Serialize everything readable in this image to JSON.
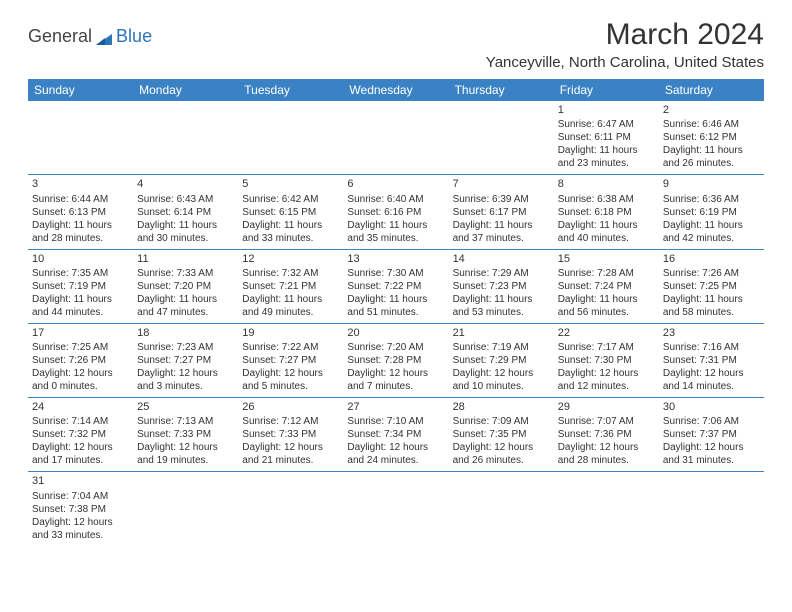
{
  "brand": {
    "general": "General",
    "blue": "Blue"
  },
  "title": "March 2024",
  "location": "Yanceyville, North Carolina, United States",
  "headers": [
    "Sunday",
    "Monday",
    "Tuesday",
    "Wednesday",
    "Thursday",
    "Friday",
    "Saturday"
  ],
  "colors": {
    "header_bg": "#3b82c4",
    "header_text": "#ffffff",
    "border": "#3b82c4",
    "brand_blue": "#2a74b8"
  },
  "weeks": [
    [
      null,
      null,
      null,
      null,
      null,
      {
        "n": "1",
        "sr": "Sunrise: 6:47 AM",
        "ss": "Sunset: 6:11 PM",
        "d1": "Daylight: 11 hours",
        "d2": "and 23 minutes."
      },
      {
        "n": "2",
        "sr": "Sunrise: 6:46 AM",
        "ss": "Sunset: 6:12 PM",
        "d1": "Daylight: 11 hours",
        "d2": "and 26 minutes."
      }
    ],
    [
      {
        "n": "3",
        "sr": "Sunrise: 6:44 AM",
        "ss": "Sunset: 6:13 PM",
        "d1": "Daylight: 11 hours",
        "d2": "and 28 minutes."
      },
      {
        "n": "4",
        "sr": "Sunrise: 6:43 AM",
        "ss": "Sunset: 6:14 PM",
        "d1": "Daylight: 11 hours",
        "d2": "and 30 minutes."
      },
      {
        "n": "5",
        "sr": "Sunrise: 6:42 AM",
        "ss": "Sunset: 6:15 PM",
        "d1": "Daylight: 11 hours",
        "d2": "and 33 minutes."
      },
      {
        "n": "6",
        "sr": "Sunrise: 6:40 AM",
        "ss": "Sunset: 6:16 PM",
        "d1": "Daylight: 11 hours",
        "d2": "and 35 minutes."
      },
      {
        "n": "7",
        "sr": "Sunrise: 6:39 AM",
        "ss": "Sunset: 6:17 PM",
        "d1": "Daylight: 11 hours",
        "d2": "and 37 minutes."
      },
      {
        "n": "8",
        "sr": "Sunrise: 6:38 AM",
        "ss": "Sunset: 6:18 PM",
        "d1": "Daylight: 11 hours",
        "d2": "and 40 minutes."
      },
      {
        "n": "9",
        "sr": "Sunrise: 6:36 AM",
        "ss": "Sunset: 6:19 PM",
        "d1": "Daylight: 11 hours",
        "d2": "and 42 minutes."
      }
    ],
    [
      {
        "n": "10",
        "sr": "Sunrise: 7:35 AM",
        "ss": "Sunset: 7:19 PM",
        "d1": "Daylight: 11 hours",
        "d2": "and 44 minutes."
      },
      {
        "n": "11",
        "sr": "Sunrise: 7:33 AM",
        "ss": "Sunset: 7:20 PM",
        "d1": "Daylight: 11 hours",
        "d2": "and 47 minutes."
      },
      {
        "n": "12",
        "sr": "Sunrise: 7:32 AM",
        "ss": "Sunset: 7:21 PM",
        "d1": "Daylight: 11 hours",
        "d2": "and 49 minutes."
      },
      {
        "n": "13",
        "sr": "Sunrise: 7:30 AM",
        "ss": "Sunset: 7:22 PM",
        "d1": "Daylight: 11 hours",
        "d2": "and 51 minutes."
      },
      {
        "n": "14",
        "sr": "Sunrise: 7:29 AM",
        "ss": "Sunset: 7:23 PM",
        "d1": "Daylight: 11 hours",
        "d2": "and 53 minutes."
      },
      {
        "n": "15",
        "sr": "Sunrise: 7:28 AM",
        "ss": "Sunset: 7:24 PM",
        "d1": "Daylight: 11 hours",
        "d2": "and 56 minutes."
      },
      {
        "n": "16",
        "sr": "Sunrise: 7:26 AM",
        "ss": "Sunset: 7:25 PM",
        "d1": "Daylight: 11 hours",
        "d2": "and 58 minutes."
      }
    ],
    [
      {
        "n": "17",
        "sr": "Sunrise: 7:25 AM",
        "ss": "Sunset: 7:26 PM",
        "d1": "Daylight: 12 hours",
        "d2": "and 0 minutes."
      },
      {
        "n": "18",
        "sr": "Sunrise: 7:23 AM",
        "ss": "Sunset: 7:27 PM",
        "d1": "Daylight: 12 hours",
        "d2": "and 3 minutes."
      },
      {
        "n": "19",
        "sr": "Sunrise: 7:22 AM",
        "ss": "Sunset: 7:27 PM",
        "d1": "Daylight: 12 hours",
        "d2": "and 5 minutes."
      },
      {
        "n": "20",
        "sr": "Sunrise: 7:20 AM",
        "ss": "Sunset: 7:28 PM",
        "d1": "Daylight: 12 hours",
        "d2": "and 7 minutes."
      },
      {
        "n": "21",
        "sr": "Sunrise: 7:19 AM",
        "ss": "Sunset: 7:29 PM",
        "d1": "Daylight: 12 hours",
        "d2": "and 10 minutes."
      },
      {
        "n": "22",
        "sr": "Sunrise: 7:17 AM",
        "ss": "Sunset: 7:30 PM",
        "d1": "Daylight: 12 hours",
        "d2": "and 12 minutes."
      },
      {
        "n": "23",
        "sr": "Sunrise: 7:16 AM",
        "ss": "Sunset: 7:31 PM",
        "d1": "Daylight: 12 hours",
        "d2": "and 14 minutes."
      }
    ],
    [
      {
        "n": "24",
        "sr": "Sunrise: 7:14 AM",
        "ss": "Sunset: 7:32 PM",
        "d1": "Daylight: 12 hours",
        "d2": "and 17 minutes."
      },
      {
        "n": "25",
        "sr": "Sunrise: 7:13 AM",
        "ss": "Sunset: 7:33 PM",
        "d1": "Daylight: 12 hours",
        "d2": "and 19 minutes."
      },
      {
        "n": "26",
        "sr": "Sunrise: 7:12 AM",
        "ss": "Sunset: 7:33 PM",
        "d1": "Daylight: 12 hours",
        "d2": "and 21 minutes."
      },
      {
        "n": "27",
        "sr": "Sunrise: 7:10 AM",
        "ss": "Sunset: 7:34 PM",
        "d1": "Daylight: 12 hours",
        "d2": "and 24 minutes."
      },
      {
        "n": "28",
        "sr": "Sunrise: 7:09 AM",
        "ss": "Sunset: 7:35 PM",
        "d1": "Daylight: 12 hours",
        "d2": "and 26 minutes."
      },
      {
        "n": "29",
        "sr": "Sunrise: 7:07 AM",
        "ss": "Sunset: 7:36 PM",
        "d1": "Daylight: 12 hours",
        "d2": "and 28 minutes."
      },
      {
        "n": "30",
        "sr": "Sunrise: 7:06 AM",
        "ss": "Sunset: 7:37 PM",
        "d1": "Daylight: 12 hours",
        "d2": "and 31 minutes."
      }
    ],
    [
      {
        "n": "31",
        "sr": "Sunrise: 7:04 AM",
        "ss": "Sunset: 7:38 PM",
        "d1": "Daylight: 12 hours",
        "d2": "and 33 minutes."
      },
      null,
      null,
      null,
      null,
      null,
      null
    ]
  ]
}
